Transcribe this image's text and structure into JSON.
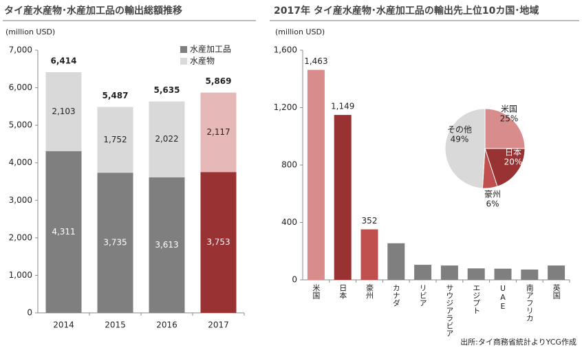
{
  "chart_data": [
    {
      "type": "stacked_bar",
      "title": "タイ産水産物･水産加工品の輸出総額推移",
      "ylabel": "(million USD)",
      "categories": [
        "2014",
        "2015",
        "2016",
        "2017"
      ],
      "series": [
        {
          "name": "水産加工品",
          "color": "#7f7f7f",
          "colors": [
            "#7f7f7f",
            "#7f7f7f",
            "#7f7f7f",
            "#993333"
          ],
          "values": [
            4311,
            3735,
            3613,
            3753
          ],
          "value_labels": [
            "4,311",
            "3,735",
            "3,613",
            "3,753"
          ]
        },
        {
          "name": "水産物",
          "color": "#d9d9d9",
          "colors": [
            "#d9d9d9",
            "#d9d9d9",
            "#d9d9d9",
            "#e6b8b8"
          ],
          "values": [
            2103,
            1752,
            2022,
            2117
          ],
          "value_labels": [
            "2,103",
            "1,752",
            "2,022",
            "2,117"
          ]
        }
      ],
      "totals": [
        6414,
        5487,
        5635,
        5869
      ],
      "total_labels": [
        "6,414",
        "5,487",
        "5,635",
        "5,869"
      ],
      "ylim": [
        0,
        7000
      ],
      "yticks": [
        0,
        {
          "value": 1000,
          "label": "1,000"
        },
        {
          "value": 2000,
          "label": "2,000"
        },
        {
          "value": 3000,
          "label": "3,000"
        },
        {
          "value": 4000,
          "label": "4,000"
        },
        {
          "value": 5000,
          "label": "5,000"
        },
        {
          "value": 6000,
          "label": "6,000"
        },
        {
          "value": 7000,
          "label": "7,000"
        }
      ]
    },
    {
      "type": "bar",
      "title": "2017年 タイ産水産物･水産加工品の輸出先上位10カ国･地域",
      "ylabel": "(million USD)",
      "categories": [
        "米国",
        "日本",
        "豪州",
        "カナダ",
        "リビア",
        "サウジアラビア",
        "エジプト",
        "UAE",
        "南アフリカ",
        "英国"
      ],
      "values": [
        1463,
        1149,
        352,
        255,
        105,
        100,
        80,
        78,
        72,
        100
      ],
      "value_labels": [
        "1,463",
        "1,149",
        "352",
        null,
        null,
        null,
        null,
        null,
        null,
        null
      ],
      "colors": [
        "#d98c8c",
        "#993333",
        "#c0504d",
        "#7f7f7f",
        "#7f7f7f",
        "#7f7f7f",
        "#7f7f7f",
        "#7f7f7f",
        "#7f7f7f",
        "#7f7f7f"
      ],
      "ylim": [
        0,
        1600
      ],
      "yticks": [
        0,
        400,
        800,
        {
          "value": 1200,
          "label": "1,200"
        },
        {
          "value": 1600,
          "label": "1,600"
        }
      ],
      "inset": {
        "type": "pie",
        "labels": [
          "米国",
          "日本",
          "豪州",
          "その他"
        ],
        "values": [
          25,
          20,
          6,
          49
        ],
        "value_labels": [
          "25%",
          "20%",
          "6%",
          "49%"
        ],
        "colors": [
          "#d98c8c",
          "#993333",
          "#c0504d",
          "#d9d9d9"
        ]
      }
    }
  ],
  "source": "出所:タイ商務省統計よりYCG作成"
}
